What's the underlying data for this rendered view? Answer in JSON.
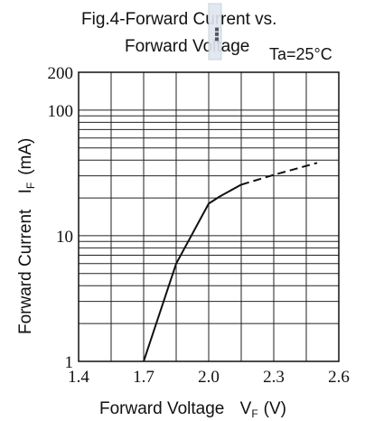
{
  "chart_data": {
    "type": "line",
    "title": "Fig.4-Forward Current vs.",
    "subtitle": "Forward Voltage",
    "condition": "Ta=25°C",
    "xlabel": "Forward Voltage",
    "xlabel_symbol": "V",
    "xlabel_subscript": "F",
    "xlabel_unit": "(V)",
    "ylabel": "Forward Current",
    "ylabel_symbol": "I",
    "ylabel_subscript": "F",
    "ylabel_unit": "(mA)",
    "xlim": [
      1.4,
      2.6
    ],
    "ylim": [
      1,
      200
    ],
    "yscale": "log",
    "grid": true,
    "x_tick_labels": [
      "1.4",
      "1.7",
      "2.0",
      "2.3",
      "2.6"
    ],
    "y_tick_labels": [
      "1",
      "10",
      "100",
      "200"
    ],
    "x_tick_values": [
      1.4,
      1.7,
      2.0,
      2.3,
      2.6
    ],
    "y_tick_values": [
      1,
      10,
      100,
      200
    ],
    "series": [
      {
        "solid": [
          [
            1.7,
            1.0
          ],
          [
            1.85,
            6.0
          ],
          [
            2.0,
            18.0
          ],
          [
            2.05,
            20.5
          ],
          [
            2.15,
            25.5
          ]
        ],
        "dashed": [
          [
            2.15,
            25.5
          ],
          [
            2.3,
            30.5
          ],
          [
            2.5,
            38.0
          ]
        ]
      }
    ]
  }
}
